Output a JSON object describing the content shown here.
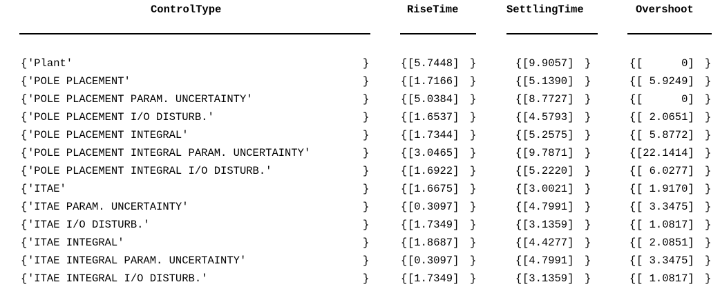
{
  "headers": {
    "control_type": "ControlType",
    "rise_time": "RiseTime",
    "settling_time": "SettlingTime",
    "overshoot": "Overshoot"
  },
  "rows": [
    {
      "control": "'Plant'",
      "rise": "[5.7448]",
      "settling": "[9.9057]",
      "overshoot": "[      0]"
    },
    {
      "control": "'POLE PLACEMENT'",
      "rise": "[1.7166]",
      "settling": "[5.1390]",
      "overshoot": "[ 5.9249]"
    },
    {
      "control": "'POLE PLACEMENT PARAM. UNCERTAINTY'",
      "rise": "[5.0384]",
      "settling": "[8.7727]",
      "overshoot": "[      0]"
    },
    {
      "control": "'POLE PLACEMENT I/O DISTURB.'",
      "rise": "[1.6537]",
      "settling": "[4.5793]",
      "overshoot": "[ 2.0651]"
    },
    {
      "control": "'POLE PLACEMENT INTEGRAL'",
      "rise": "[1.7344]",
      "settling": "[5.2575]",
      "overshoot": "[ 5.8772]"
    },
    {
      "control": "'POLE PLACEMENT INTEGRAL PARAM. UNCERTAINTY'",
      "rise": "[3.0465]",
      "settling": "[9.7871]",
      "overshoot": "[22.1414]"
    },
    {
      "control": "'POLE PLACEMENT INTEGRAL I/O DISTURB.'",
      "rise": "[1.6922]",
      "settling": "[5.2220]",
      "overshoot": "[ 6.0277]"
    },
    {
      "control": "'ITAE'",
      "rise": "[1.6675]",
      "settling": "[3.0021]",
      "overshoot": "[ 1.9170]"
    },
    {
      "control": "'ITAE PARAM. UNCERTAINTY'",
      "rise": "[0.3097]",
      "settling": "[4.7991]",
      "overshoot": "[ 3.3475]"
    },
    {
      "control": "'ITAE I/O DISTURB.'",
      "rise": "[1.7349]",
      "settling": "[3.1359]",
      "overshoot": "[ 1.0817]"
    },
    {
      "control": "'ITAE INTEGRAL'",
      "rise": "[1.8687]",
      "settling": "[4.4277]",
      "overshoot": "[ 2.0851]"
    },
    {
      "control": "'ITAE INTEGRAL PARAM. UNCERTAINTY'",
      "rise": "[0.3097]",
      "settling": "[4.7991]",
      "overshoot": "[ 3.3475]"
    },
    {
      "control": "'ITAE INTEGRAL I/O DISTURB.'",
      "rise": "[1.7349]",
      "settling": "[3.1359]",
      "overshoot": "[ 1.0817]"
    }
  ],
  "brace_open": "{",
  "brace_close": "}"
}
